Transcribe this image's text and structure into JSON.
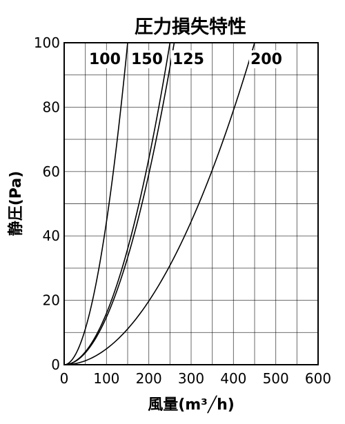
{
  "chart_data": {
    "type": "line",
    "title": "圧力損失特性",
    "xlabel": "風量(m³╱h)",
    "ylabel": "静圧(Pa)",
    "xlim": [
      0,
      600
    ],
    "ylim": [
      0,
      100
    ],
    "x_ticks": [
      "0",
      "100",
      "200",
      "300",
      "400",
      "500",
      "600"
    ],
    "y_ticks": [
      "0",
      "20",
      "40",
      "60",
      "80",
      "100"
    ],
    "grid": true,
    "series": [
      {
        "name": "100",
        "x": [
          0,
          25,
          50,
          75,
          100,
          125,
          150
        ],
        "y": [
          0,
          3,
          11,
          25,
          44,
          69,
          100
        ]
      },
      {
        "name": "150",
        "x": [
          0,
          50,
          100,
          150,
          200,
          250
        ],
        "y": [
          0,
          4,
          16,
          36,
          64,
          100
        ]
      },
      {
        "name": "125",
        "x": [
          0,
          50,
          100,
          150,
          200,
          250,
          260
        ],
        "y": [
          0,
          3.7,
          14.8,
          33.3,
          59.2,
          92.5,
          100
        ]
      },
      {
        "name": "200",
        "x": [
          0,
          100,
          200,
          300,
          400,
          450
        ],
        "y": [
          0,
          5,
          20,
          45,
          80,
          100
        ]
      }
    ]
  }
}
